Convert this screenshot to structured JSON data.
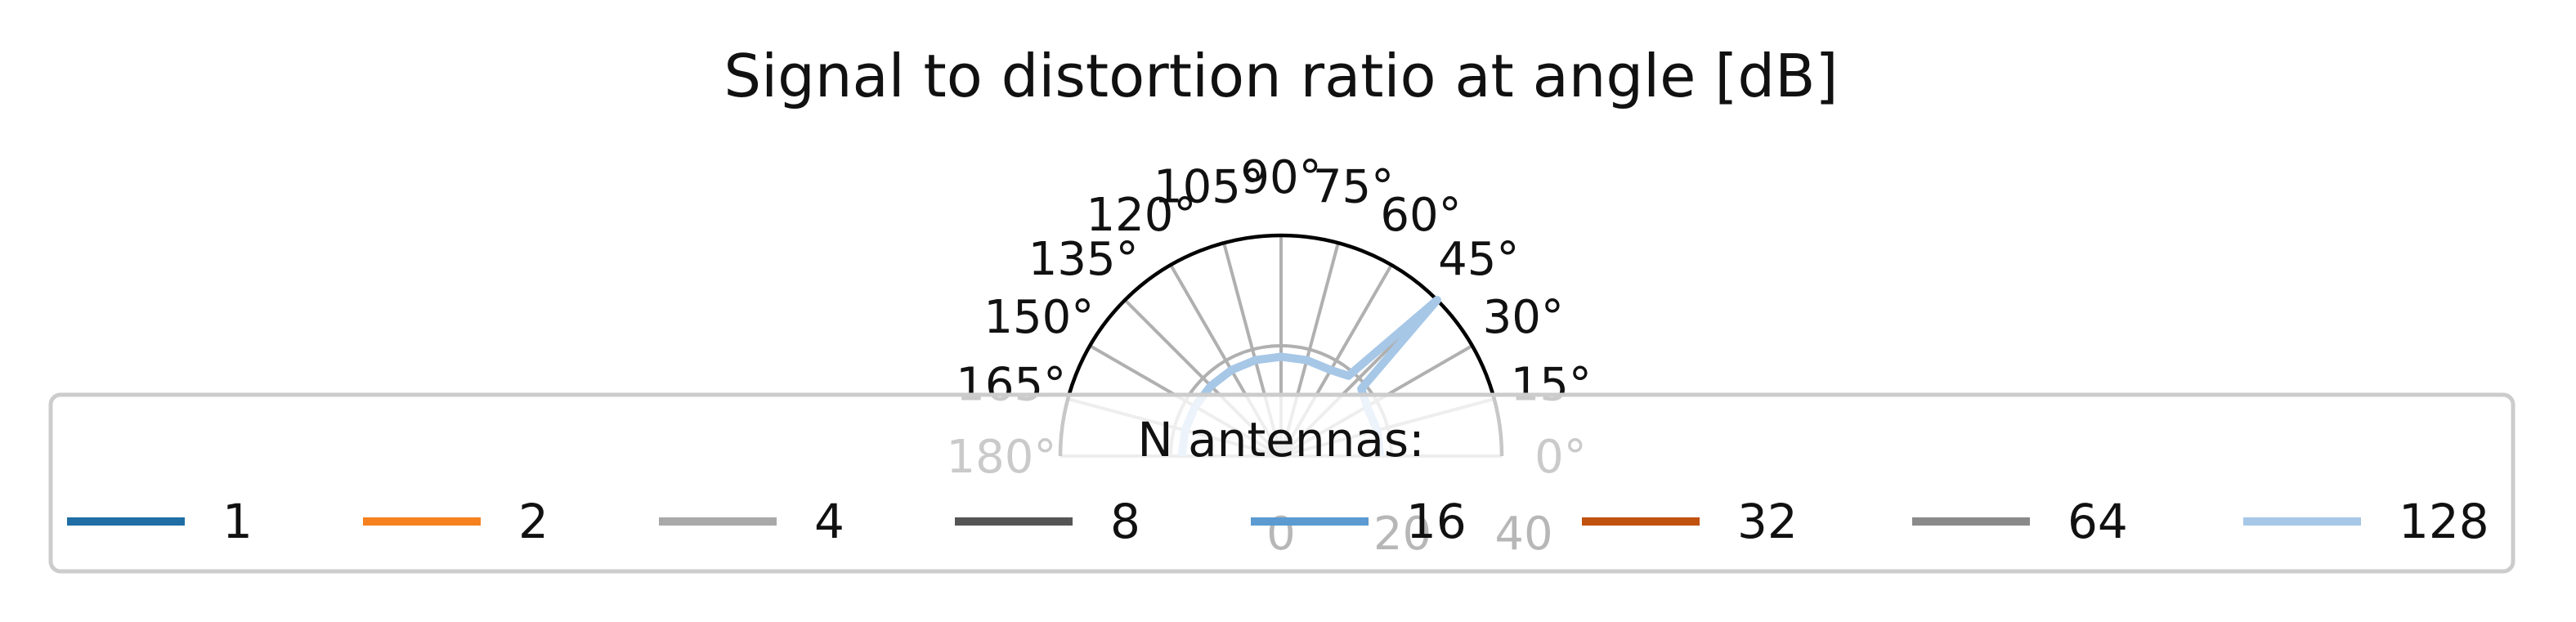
{
  "chart_data": {
    "type": "line",
    "projection": "polar (half-circle, 0° to 180°)",
    "title": "Signal to distortion ratio at angle [dB]",
    "angle_ticks": [
      "0°",
      "15°",
      "30°",
      "45°",
      "60°",
      "75°",
      "90°",
      "105°",
      "120°",
      "135°",
      "150°",
      "165°",
      "180°"
    ],
    "radial_ticks": [
      "0",
      "20",
      "40"
    ],
    "rlim": [
      0,
      40
    ],
    "grid": true,
    "legend": {
      "title": "N antennas:",
      "placement": "bottom",
      "entries": [
        "1",
        "2",
        "4",
        "8",
        "16",
        "32",
        "64",
        "128"
      ],
      "colors": [
        "#1f6ea5",
        "#f5821f",
        "#a9a9a9",
        "#555555",
        "#5b9bd1",
        "#c1510f",
        "#8a8a8a",
        "#a7c7e7"
      ]
    },
    "series": [
      {
        "name": "128",
        "color": "#a7c7e7",
        "theta_deg": [
          0,
          15,
          30,
          40,
          45,
          50,
          60,
          75,
          90,
          105,
          120,
          135,
          150,
          165,
          180
        ],
        "r": [
          18,
          18,
          18,
          19,
          40,
          19,
          18,
          18,
          18,
          18,
          18,
          18,
          18,
          18,
          18
        ]
      }
    ]
  }
}
